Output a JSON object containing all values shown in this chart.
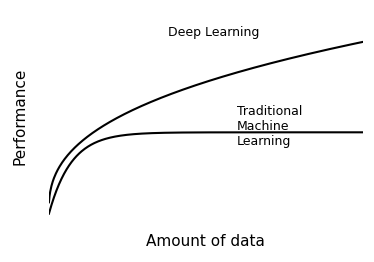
{
  "xlabel": "Amount of data",
  "ylabel": "Performance",
  "xlabel_fontsize": 11,
  "ylabel_fontsize": 11,
  "label_deep": "Deep Learning",
  "label_trad": "Traditional\nMachine\nLearning",
  "label_fontsize": 9,
  "line_color": "#000000",
  "line_width": 1.5,
  "background_color": "#ffffff",
  "fig_width": 3.74,
  "fig_height": 2.62,
  "dpi": 100,
  "xlim": [
    0,
    1.0
  ],
  "ylim": [
    0,
    1.0
  ]
}
